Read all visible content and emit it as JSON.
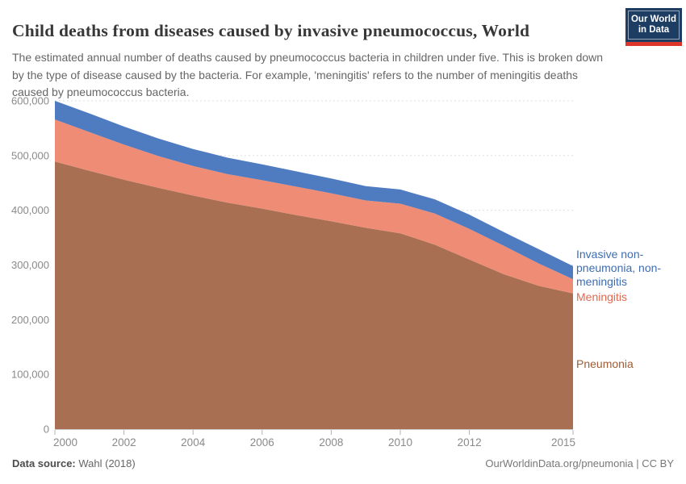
{
  "header": {
    "title": "Child deaths from diseases caused by invasive pneumococcus, World",
    "subtitle": "The estimated annual number of deaths caused by pneumococcus bacteria in children under five. This is broken down by the type of disease caused by the bacteria. For example, 'meningitis' refers to the number of meningitis deaths caused by pneumococcus bacteria.",
    "logo": {
      "line1": "Our World",
      "line2": "in Data",
      "bg_color": "#1d3d63",
      "stripe_color": "#dc352a"
    }
  },
  "chart_data": {
    "type": "area",
    "stacked": true,
    "title": "Child deaths from diseases caused by invasive pneumococcus, World",
    "xlabel": "",
    "ylabel": "",
    "xlim": [
      2000,
      2015
    ],
    "ylim": [
      0,
      600000
    ],
    "grid": "dashed-horizontal",
    "legend_position": "right-edge-of-plot",
    "x": [
      2000,
      2001,
      2002,
      2003,
      2004,
      2005,
      2006,
      2007,
      2008,
      2009,
      2010,
      2011,
      2012,
      2013,
      2014,
      2015
    ],
    "series": [
      {
        "name": "Pneumonia",
        "legend_label": "Pneumonia",
        "color": "#A86F52",
        "label_color": "#9E5C36",
        "values": [
          489000,
          472000,
          456000,
          441000,
          427000,
          414000,
          403000,
          391000,
          380000,
          368000,
          358000,
          337000,
          310000,
          283000,
          262000,
          248000
        ]
      },
      {
        "name": "Meningitis",
        "legend_label": "Meningitis",
        "color": "#EE8C76",
        "label_color": "#E2684F",
        "values": [
          77000,
          71000,
          64000,
          58000,
          54000,
          52000,
          52000,
          52000,
          51000,
          50000,
          54000,
          57000,
          56000,
          52000,
          41000,
          26000
        ]
      },
      {
        "name": "Invasive non-pneumonia, non-meningitis",
        "legend_label": "Invasive non-pneumonia, non-meningitis",
        "color": "#4F7BC0",
        "label_color": "#3C6DB3",
        "values": [
          34000,
          34000,
          33000,
          32000,
          31000,
          30000,
          29000,
          28000,
          27000,
          26000,
          26000,
          26000,
          26000,
          25000,
          26000,
          24000
        ]
      }
    ],
    "x_ticks": [
      {
        "value": 2000,
        "label": "2000"
      },
      {
        "value": 2002,
        "label": "2002"
      },
      {
        "value": 2004,
        "label": "2004"
      },
      {
        "value": 2006,
        "label": "2006"
      },
      {
        "value": 2008,
        "label": "2008"
      },
      {
        "value": 2010,
        "label": "2010"
      },
      {
        "value": 2012,
        "label": "2012"
      },
      {
        "value": 2015,
        "label": "2015"
      }
    ],
    "y_ticks": [
      {
        "value": 0,
        "label": "0"
      },
      {
        "value": 100000,
        "label": "100,000"
      },
      {
        "value": 200000,
        "label": "200,000"
      },
      {
        "value": 300000,
        "label": "300,000"
      },
      {
        "value": 400000,
        "label": "400,000"
      },
      {
        "value": 500000,
        "label": "500,000"
      },
      {
        "value": 600000,
        "label": "600,000"
      }
    ]
  },
  "footer": {
    "datasource_label": "Data source:",
    "datasource_value": " Wahl (2018)",
    "attribution": "OurWorldinData.org/pneumonia | CC BY"
  }
}
